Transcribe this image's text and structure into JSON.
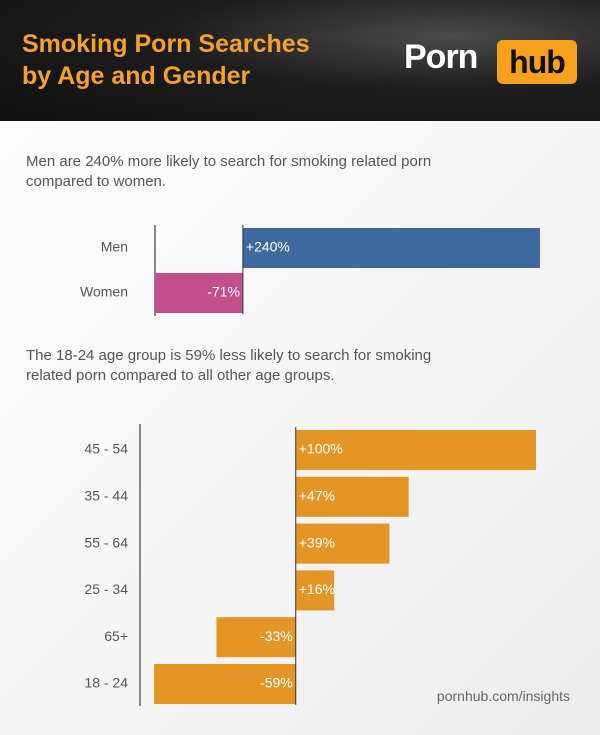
{
  "header": {
    "title_lines": [
      "Smoking Porn Searches",
      "by Age and Gender"
    ],
    "logo_left": "Porn",
    "logo_right": "hub"
  },
  "chart_data": [
    {
      "type": "bar",
      "orientation": "horizontal",
      "title_lines": [
        "Men are 240% more likely to search for smoking related porn",
        "compared to women."
      ],
      "categories": [
        "Men",
        "Women"
      ],
      "values": [
        240,
        -71
      ],
      "value_labels": [
        "+240%",
        "-71%"
      ],
      "colors": [
        "#3e6a9e",
        "#c24f8b"
      ]
    },
    {
      "type": "bar",
      "orientation": "horizontal",
      "title_lines": [
        "The 18-24 age group is 59% less likely to search for smoking",
        "related porn compared to all other age groups."
      ],
      "categories": [
        "45 - 54",
        "35 - 44",
        "55 - 64",
        "25 - 34",
        "65+",
        "18 - 24"
      ],
      "values": [
        100,
        47,
        39,
        16,
        -33,
        -59
      ],
      "value_labels": [
        "+100%",
        "+47%",
        "+39%",
        "+16%",
        "-33%",
        "-59%"
      ],
      "colors": [
        "#e39526",
        "#e39526",
        "#e39526",
        "#e39526",
        "#e39526",
        "#e39526"
      ]
    }
  ],
  "source": "pornhub.com/insights"
}
